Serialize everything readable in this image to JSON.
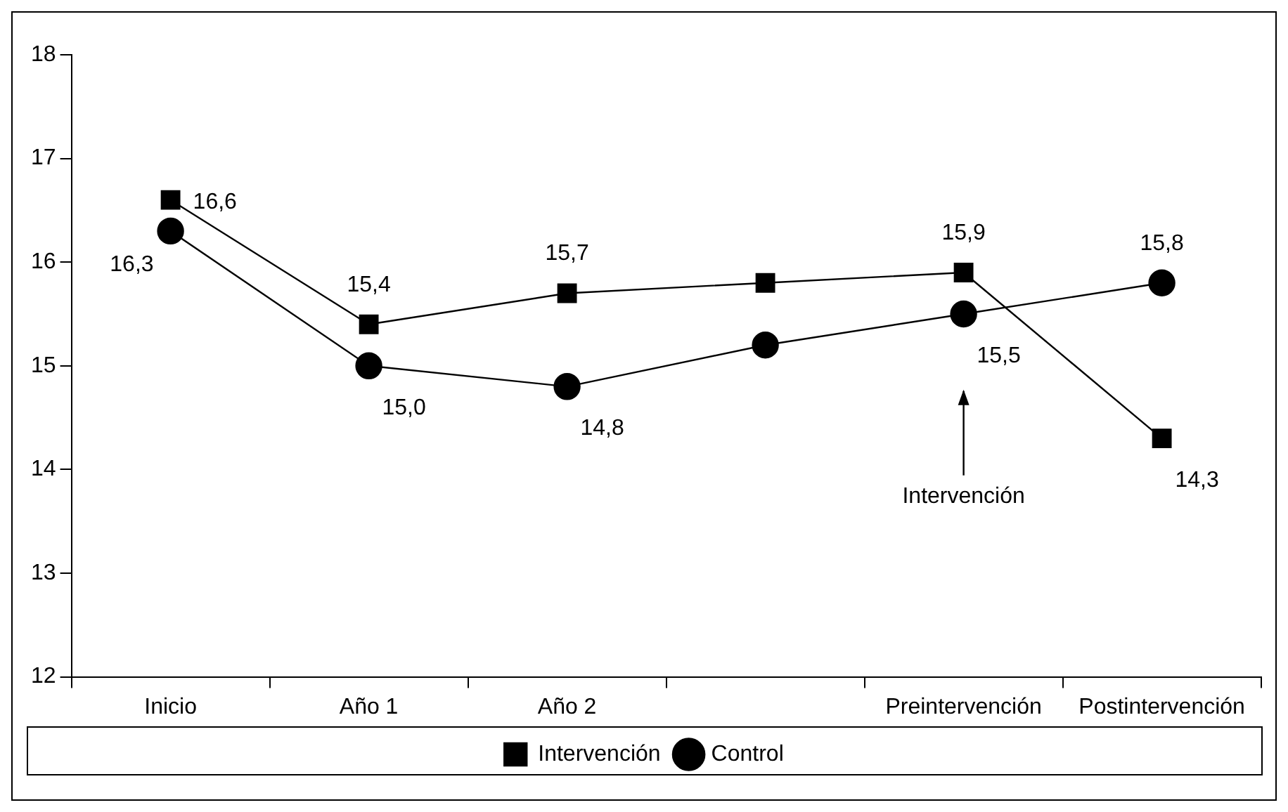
{
  "chart_data": {
    "type": "line",
    "categories": [
      "Inicio",
      "Año 1",
      "Año 2",
      null,
      "Preintervención",
      "Postintervención"
    ],
    "series": [
      {
        "name": "Intervención",
        "color": "#000000",
        "marker": "square",
        "values": [
          16.6,
          15.4,
          15.7,
          15.8,
          15.9,
          14.3
        ],
        "value_labels": [
          "16,6",
          "15,4",
          "15,7",
          null,
          "15,9",
          "14,3"
        ]
      },
      {
        "name": "Control",
        "color": "#000000",
        "marker": "circle",
        "values": [
          16.3,
          15.0,
          14.8,
          15.2,
          15.5,
          15.8
        ],
        "value_labels": [
          "16,3",
          "15,0",
          "14,8",
          null,
          "15,5",
          "15,8"
        ]
      }
    ],
    "ylim": [
      12,
      18
    ],
    "yticks": [
      12,
      13,
      14,
      15,
      16,
      17,
      18
    ],
    "annotations": [
      "Intervención"
    ],
    "legend": "bottom",
    "grid": false
  }
}
